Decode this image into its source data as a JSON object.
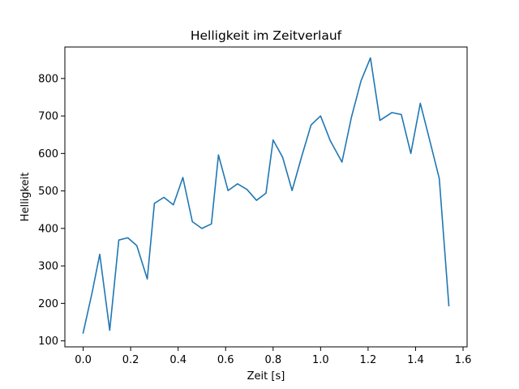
{
  "chart_data": {
    "type": "line",
    "title": "Helligkeit im Zeitverlauf",
    "xlabel": "Zeit [s]",
    "ylabel": "Helligkeit",
    "xlim": [
      -0.077,
      1.617
    ],
    "ylim": [
      84,
      884
    ],
    "grid": false,
    "x_ticks": [
      0.0,
      0.2,
      0.4,
      0.6,
      0.8,
      1.0,
      1.2,
      1.4,
      1.6
    ],
    "x_tick_labels": [
      "0.0",
      "0.2",
      "0.4",
      "0.6",
      "0.8",
      "1.0",
      "1.2",
      "1.4",
      "1.6"
    ],
    "y_ticks": [
      100,
      200,
      300,
      400,
      500,
      600,
      700,
      800
    ],
    "y_tick_labels": [
      "100",
      "200",
      "300",
      "400",
      "500",
      "600",
      "700",
      "800"
    ],
    "series": [
      {
        "color": "#1f77b4",
        "x": [
          0.0,
          0.038,
          0.07,
          0.112,
          0.15,
          0.188,
          0.226,
          0.27,
          0.3,
          0.34,
          0.38,
          0.42,
          0.46,
          0.5,
          0.54,
          0.57,
          0.61,
          0.65,
          0.69,
          0.73,
          0.77,
          0.8,
          0.84,
          0.88,
          0.92,
          0.96,
          1.0,
          1.04,
          1.09,
          1.13,
          1.17,
          1.21,
          1.25,
          1.3,
          1.34,
          1.38,
          1.42,
          1.46,
          1.5,
          1.54
        ],
        "y": [
          121,
          230,
          331,
          128,
          369,
          375,
          354,
          265,
          467,
          483,
          463,
          536,
          418,
          400,
          412,
          596,
          501,
          519,
          504,
          475,
          494,
          636,
          590,
          501,
          591,
          676,
          700,
          635,
          577,
          697,
          793,
          855,
          688,
          709,
          704,
          600,
          734,
          634,
          533,
          194
        ]
      }
    ]
  }
}
